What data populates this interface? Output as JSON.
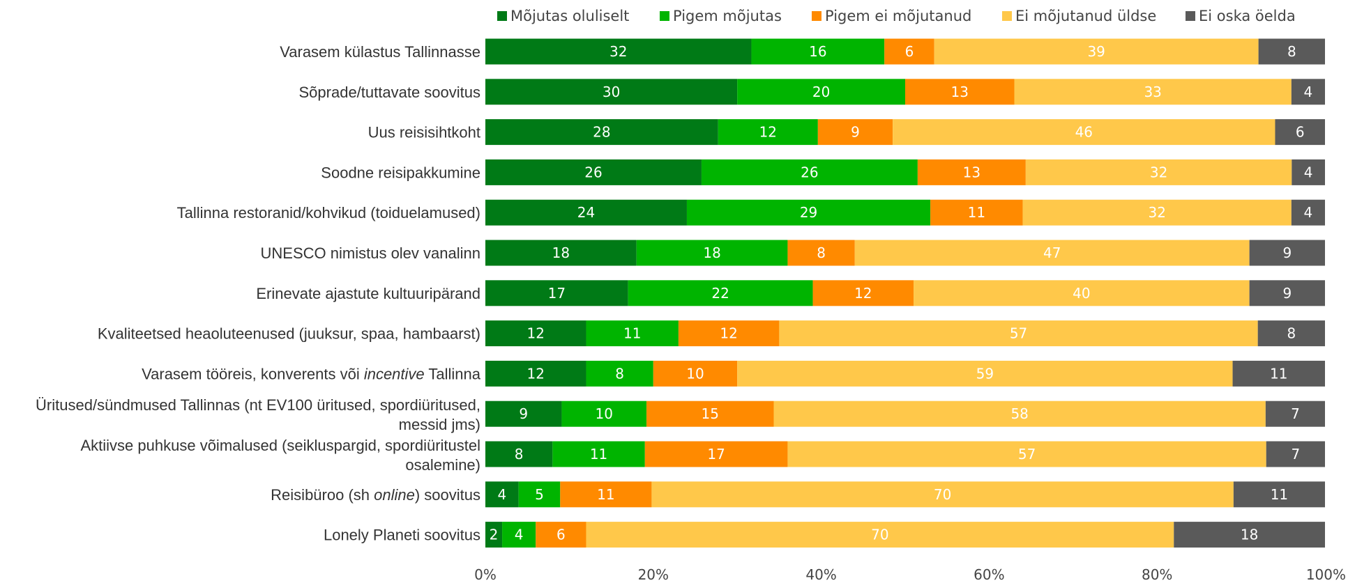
{
  "chart_data": {
    "type": "bar",
    "orientation": "horizontal",
    "stacked": "percent",
    "categories": [
      {
        "parts": [
          {
            "text": "Varasem külastus Tallinnasse",
            "italic": false
          }
        ]
      },
      {
        "parts": [
          {
            "text": "Sõprade/tuttavate soovitus",
            "italic": false
          }
        ]
      },
      {
        "parts": [
          {
            "text": "Uus reisisihtkoht",
            "italic": false
          }
        ]
      },
      {
        "parts": [
          {
            "text": "Soodne reisipakkumine",
            "italic": false
          }
        ]
      },
      {
        "parts": [
          {
            "text": "Tallinna restoranid/kohvikud (toiduelamused)",
            "italic": false
          }
        ]
      },
      {
        "parts": [
          {
            "text": "UNESCO nimistus olev vanalinn",
            "italic": false
          }
        ]
      },
      {
        "parts": [
          {
            "text": "Erinevate ajastute kultuuripärand",
            "italic": false
          }
        ]
      },
      {
        "parts": [
          {
            "text": "Kvaliteetsed heaoluteenused (juuksur, spaa, hambaarst)",
            "italic": false
          }
        ]
      },
      {
        "parts": [
          {
            "text": "Varasem tööreis, konverents või ",
            "italic": false
          },
          {
            "text": "incentive",
            "italic": true
          },
          {
            "text": " Tallinna",
            "italic": false
          }
        ]
      },
      {
        "lines": [
          "Üritused/sündmused Tallinnas (nt EV100 üritused, spordiüritused,",
          "messid jms)"
        ]
      },
      {
        "lines": [
          "Aktiivse puhkuse võimalused (seikluspargid, spordiüritustel",
          "osalemine)"
        ]
      },
      {
        "parts": [
          {
            "text": "Reisibüroo (sh ",
            "italic": false
          },
          {
            "text": "online",
            "italic": true
          },
          {
            "text": ") soovitus",
            "italic": false
          }
        ]
      },
      {
        "parts": [
          {
            "text": "Lonely Planeti soovitus",
            "italic": false
          }
        ]
      }
    ],
    "series": [
      {
        "name": "Mõjutas oluliselt",
        "color": "#007a16",
        "label_color": "#ffffff",
        "values": [
          32,
          30,
          28,
          26,
          24,
          18,
          17,
          12,
          12,
          9,
          8,
          4,
          2
        ]
      },
      {
        "name": "Pigem mõjutas",
        "color": "#00b400",
        "label_color": "#ffffff",
        "values": [
          16,
          20,
          12,
          26,
          29,
          18,
          22,
          11,
          8,
          10,
          11,
          5,
          4
        ]
      },
      {
        "name": "Pigem ei mõjutanud",
        "color": "#ff8a00",
        "label_color": "#ffffff",
        "values": [
          6,
          13,
          9,
          13,
          11,
          8,
          12,
          12,
          10,
          15,
          17,
          11,
          6
        ]
      },
      {
        "name": "Ei mõjutanud üldse",
        "color": "#ffc84a",
        "label_color": "#ffffff",
        "values": [
          39,
          33,
          46,
          32,
          32,
          47,
          40,
          57,
          59,
          58,
          57,
          70,
          70
        ]
      },
      {
        "name": "Ei oska öelda",
        "color": "#5a5a5a",
        "label_color": "#ffffff",
        "values": [
          8,
          4,
          6,
          4,
          4,
          9,
          9,
          8,
          11,
          7,
          7,
          11,
          18
        ]
      }
    ],
    "x_ticks": [
      "0%",
      "20%",
      "40%",
      "60%",
      "80%",
      "100%"
    ],
    "xlim": [
      0,
      100
    ],
    "legend": {
      "position": "top"
    },
    "grid": false,
    "title": "",
    "xlabel": "",
    "ylabel": ""
  }
}
